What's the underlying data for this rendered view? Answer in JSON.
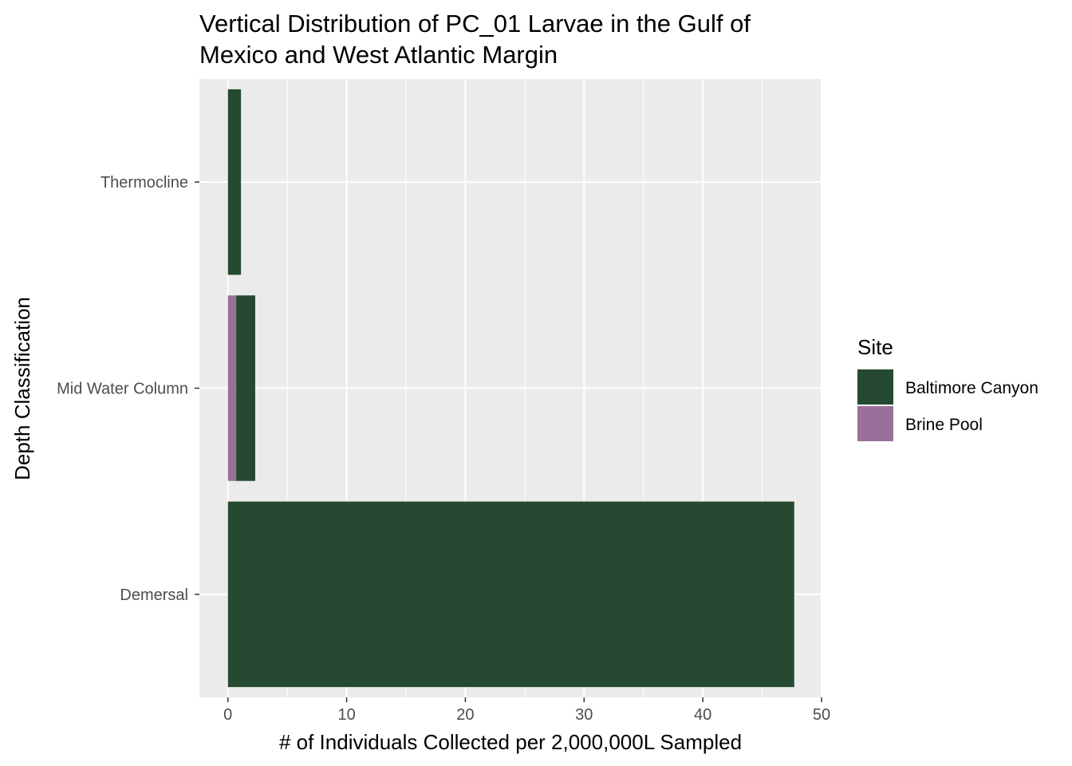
{
  "chart_data": {
    "type": "bar",
    "orientation": "horizontal",
    "stacked": true,
    "title": [
      "Vertical Distribution of PC_01 Larvae in the Gulf of",
      "Mexico and West Atlantic Margin"
    ],
    "xlabel": "# of Individuals Collected per 2,000,000L Sampled",
    "ylabel": "Depth Classification",
    "categories": [
      "Demersal",
      "Mid Water Column",
      "Thermocline"
    ],
    "xlim": [
      -2.4,
      50
    ],
    "xticks": [
      0,
      10,
      20,
      30,
      40,
      50
    ],
    "series": [
      {
        "name": "Brine Pool",
        "color": "#9a6f9a",
        "values": [
          0,
          0.7,
          0
        ]
      },
      {
        "name": "Baltimore Canyon",
        "color": "#264a31",
        "values": [
          47.7,
          1.6,
          1.1
        ]
      }
    ],
    "legend": {
      "title": "Site",
      "position": "right",
      "entries": [
        {
          "name": "Baltimore Canyon",
          "color": "#264a31"
        },
        {
          "name": "Brine Pool",
          "color": "#9a6f9a"
        }
      ]
    },
    "panel_background": "#ebebeb",
    "grid": true
  }
}
